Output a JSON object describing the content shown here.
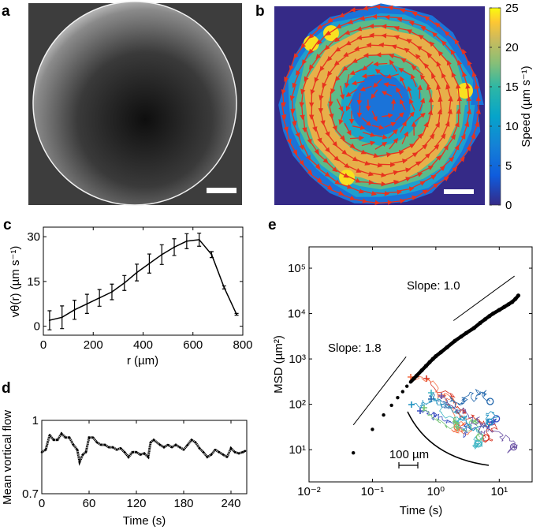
{
  "panels": {
    "a": {
      "label": "a",
      "kind": "micrograph"
    },
    "b": {
      "label": "b",
      "kind": "velocity-field",
      "colorbar": {
        "label": "Speed (µm s⁻¹)",
        "ticks": [
          "0",
          "5",
          "10",
          "15",
          "20",
          "25"
        ],
        "range": [
          0,
          25
        ],
        "colormap": "parula"
      },
      "arrow_color": "#e8321e",
      "background_color": "#352a87"
    },
    "c": {
      "label": "c"
    },
    "d": {
      "label": "d"
    },
    "e": {
      "label": "e"
    }
  },
  "chart_data": [
    {
      "id": "c",
      "type": "line",
      "xlabel": "r (µm)",
      "ylabel": "vθ(r) (µm s⁻¹)",
      "xlim": [
        0,
        800
      ],
      "ylim": [
        -3,
        33.2
      ],
      "xticks": [
        "0",
        "200",
        "400",
        "600",
        "800"
      ],
      "xtick_values": [
        0,
        200,
        400,
        600,
        800
      ],
      "yticks": [
        "0",
        "15",
        "30"
      ],
      "ytick_values": [
        0,
        15,
        30
      ],
      "x": [
        25,
        75,
        125,
        175,
        225,
        275,
        325,
        375,
        425,
        475,
        525,
        575,
        625,
        675,
        725,
        775
      ],
      "y": [
        2,
        3,
        5.5,
        7.5,
        9.5,
        11.5,
        14.5,
        18,
        21,
        24,
        26.5,
        28.5,
        29,
        24,
        13,
        4
      ],
      "yerr": [
        3.2,
        3.8,
        3.2,
        3.2,
        2.8,
        2.6,
        2.5,
        2.8,
        3.2,
        3.3,
        2.8,
        2.5,
        2.2,
        1,
        0.5,
        0.3
      ]
    },
    {
      "id": "d",
      "type": "scatter",
      "xlabel": "Time (s)",
      "ylabel": "Mean vortical flow",
      "xlim": [
        0,
        260
      ],
      "ylim": [
        0.7,
        1
      ],
      "xticks": [
        "0",
        "60",
        "120",
        "180",
        "240"
      ],
      "xtick_values": [
        0,
        60,
        120,
        180,
        240
      ],
      "yticks": [
        "0.7",
        "1"
      ],
      "ytick_values": [
        0.7,
        1
      ],
      "x": [
        0,
        5,
        10,
        15,
        20,
        25,
        30,
        35,
        40,
        45,
        48,
        52,
        56,
        60,
        65,
        70,
        75,
        80,
        85,
        90,
        95,
        100,
        105,
        110,
        115,
        120,
        125,
        130,
        135,
        138,
        142,
        150,
        155,
        160,
        165,
        170,
        175,
        180,
        185,
        190,
        195,
        200,
        205,
        210,
        215,
        220,
        225,
        230,
        235,
        240,
        245,
        250,
        255,
        258
      ],
      "y": [
        0.87,
        0.88,
        0.94,
        0.92,
        0.92,
        0.946,
        0.93,
        0.93,
        0.9,
        0.88,
        0.83,
        0.86,
        0.87,
        0.93,
        0.93,
        0.91,
        0.9,
        0.9,
        0.89,
        0.89,
        0.88,
        0.886,
        0.87,
        0.85,
        0.87,
        0.87,
        0.86,
        0.865,
        0.85,
        0.91,
        0.92,
        0.9,
        0.89,
        0.9,
        0.89,
        0.9,
        0.89,
        0.88,
        0.9,
        0.92,
        0.91,
        0.886,
        0.87,
        0.85,
        0.86,
        0.88,
        0.87,
        0.86,
        0.85,
        0.886,
        0.87,
        0.865,
        0.87,
        0.875
      ]
    },
    {
      "id": "e",
      "type": "scatter",
      "xlabel": "Time (s)",
      "ylabel": "MSD (µm²)",
      "xscale": "log",
      "yscale": "log",
      "xlim": [
        0.01,
        33
      ],
      "ylim": [
        1.95,
        295000
      ],
      "xticks": [
        "10⁻²",
        "10⁻¹",
        "10⁰",
        "10¹"
      ],
      "xtick_values": [
        0.01,
        0.1,
        1,
        10
      ],
      "yticks": [
        "10¹",
        "10²",
        "10³",
        "10⁴",
        "10⁵"
      ],
      "ytick_values": [
        10,
        100,
        1000,
        10000,
        100000
      ],
      "x": [
        0.05,
        0.1,
        0.15,
        0.2,
        0.25,
        0.3,
        0.35,
        0.4,
        0.45,
        0.5,
        0.6,
        0.7,
        0.8,
        0.9,
        1,
        1.2,
        1.5,
        2,
        2.5,
        3,
        4,
        5,
        6,
        7,
        8,
        10,
        12,
        14,
        16,
        18,
        20
      ],
      "y": [
        8.5,
        28,
        58,
        95,
        140,
        190,
        250,
        310,
        370,
        430,
        560,
        700,
        850,
        1000,
        1150,
        1400,
        1800,
        2500,
        3100,
        3700,
        4800,
        6200,
        7500,
        8800,
        10000,
        12000,
        14000,
        16000,
        18000,
        21000,
        25000
      ],
      "reference_lines": [
        {
          "label": "Slope: 1.8",
          "x": [
            0.05,
            0.34
          ],
          "y": [
            35,
            1120
          ]
        },
        {
          "label": "Slope: 1.0",
          "x": [
            1.9,
            17.4
          ],
          "y": [
            7000,
            67000
          ]
        }
      ],
      "inset": {
        "scale_bar_label": "100 µm",
        "trajectory_colors": [
          "#d7301f",
          "#f46d43",
          "#2166ac",
          "#3a4fc1",
          "#41b6c4",
          "#74c476",
          "#1d91c0",
          "#6a51a3"
        ]
      }
    }
  ]
}
